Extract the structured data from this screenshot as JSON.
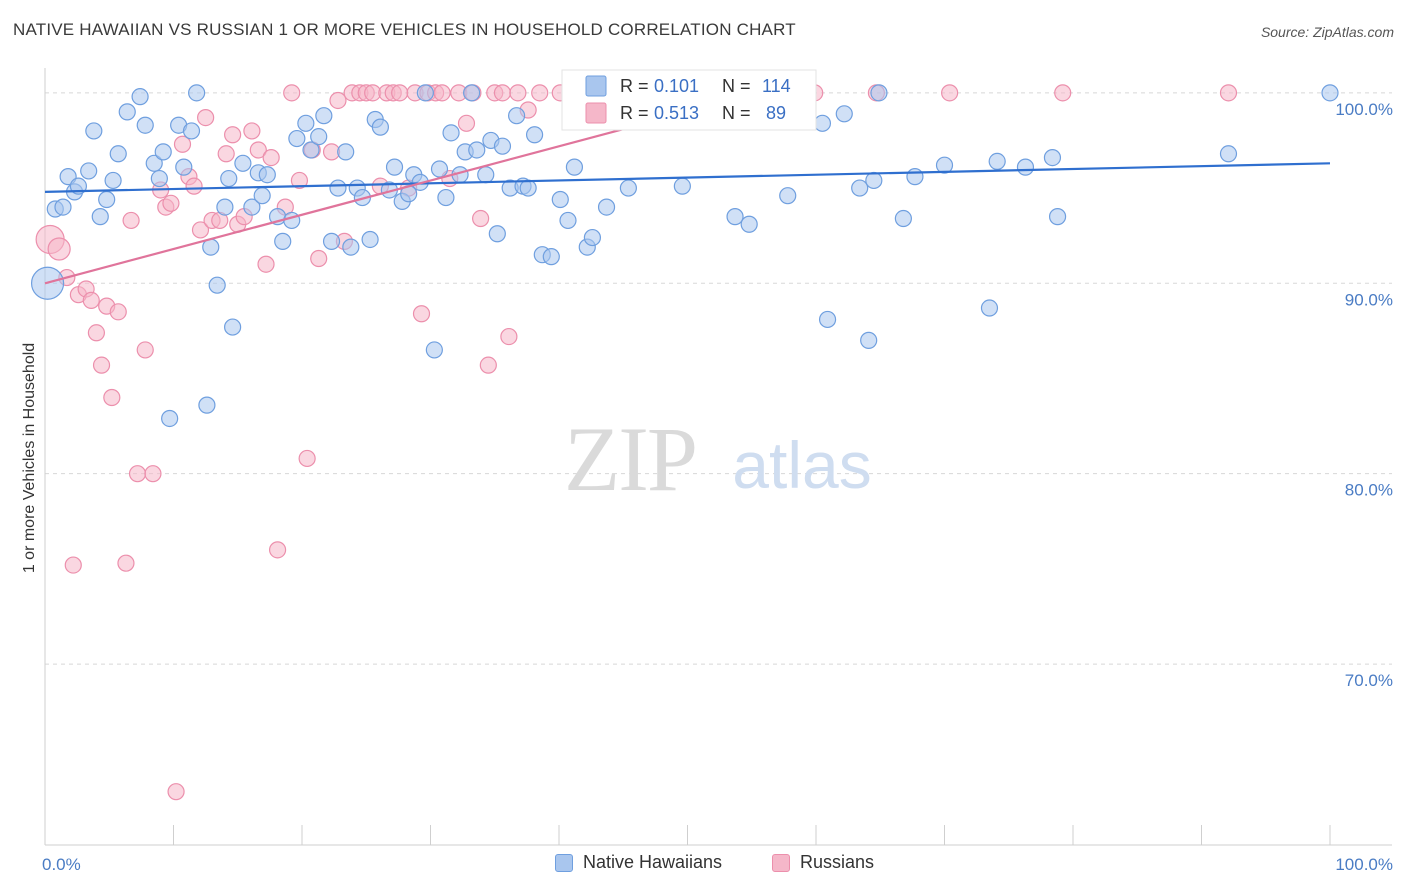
{
  "title": "NATIVE HAWAIIAN VS RUSSIAN 1 OR MORE VEHICLES IN HOUSEHOLD CORRELATION CHART",
  "source": "Source: ZipAtlas.com",
  "watermark": {
    "zip": "ZIP",
    "atlas": "atlas"
  },
  "colors": {
    "blue_fill": "#a9c6ee",
    "blue_stroke": "#6f9fdf",
    "blue_line": "#2f6fcf",
    "pink_fill": "#f5b7c9",
    "pink_stroke": "#ec8fac",
    "pink_line": "#e0749b",
    "grid": "#d8d8d8",
    "axis_text": "#4a7cc4"
  },
  "legend_stats": {
    "r_label": "R =",
    "n_label": "N =",
    "series": [
      {
        "name": "Native Hawaiians",
        "r": "0.101",
        "n": "114"
      },
      {
        "name": "Russians",
        "r": "0.513",
        "n": "89"
      }
    ]
  },
  "chart_data": {
    "type": "scatter",
    "title": "NATIVE HAWAIIAN VS RUSSIAN 1 OR MORE VEHICLES IN HOUSEHOLD CORRELATION CHART",
    "xlabel": "",
    "ylabel": "1 or more Vehicles in Household",
    "xlim": [
      0,
      100
    ],
    "ylim": [
      60.5,
      101.2
    ],
    "x_tick_labels": [
      "0.0%",
      "100.0%"
    ],
    "y_ticks": [
      70,
      80,
      90,
      100
    ],
    "y_tick_labels": [
      "70.0%",
      "80.0%",
      "90.0%",
      "100.0%"
    ],
    "series": [
      {
        "name": "Native Hawaiians",
        "color": "blue",
        "trend": {
          "x0": 0,
          "y0": 94.8,
          "x1": 100,
          "y1": 96.3
        },
        "points": [
          {
            "x": 0.2,
            "y": 90.0,
            "s": 16
          },
          {
            "x": 0.8,
            "y": 93.9
          },
          {
            "x": 1.4,
            "y": 94.0
          },
          {
            "x": 1.8,
            "y": 95.6
          },
          {
            "x": 2.3,
            "y": 94.8
          },
          {
            "x": 2.6,
            "y": 95.1
          },
          {
            "x": 3.4,
            "y": 95.9
          },
          {
            "x": 3.8,
            "y": 98.0
          },
          {
            "x": 4.3,
            "y": 93.5
          },
          {
            "x": 4.8,
            "y": 94.4
          },
          {
            "x": 5.3,
            "y": 95.4
          },
          {
            "x": 5.7,
            "y": 96.8
          },
          {
            "x": 6.4,
            "y": 99.0
          },
          {
            "x": 7.4,
            "y": 99.8
          },
          {
            "x": 7.8,
            "y": 98.3
          },
          {
            "x": 8.5,
            "y": 96.3
          },
          {
            "x": 8.9,
            "y": 95.5
          },
          {
            "x": 9.2,
            "y": 96.9
          },
          {
            "x": 9.7,
            "y": 82.9
          },
          {
            "x": 10.4,
            "y": 98.3
          },
          {
            "x": 10.8,
            "y": 96.1
          },
          {
            "x": 11.4,
            "y": 98.0
          },
          {
            "x": 11.8,
            "y": 100.0
          },
          {
            "x": 12.6,
            "y": 83.6
          },
          {
            "x": 12.9,
            "y": 91.9
          },
          {
            "x": 13.4,
            "y": 89.9
          },
          {
            "x": 14.0,
            "y": 94.0
          },
          {
            "x": 14.3,
            "y": 95.5
          },
          {
            "x": 14.6,
            "y": 87.7
          },
          {
            "x": 15.4,
            "y": 96.3
          },
          {
            "x": 16.1,
            "y": 94.0
          },
          {
            "x": 16.6,
            "y": 95.8
          },
          {
            "x": 16.9,
            "y": 94.6
          },
          {
            "x": 17.3,
            "y": 95.7
          },
          {
            "x": 18.1,
            "y": 93.5
          },
          {
            "x": 18.5,
            "y": 92.2
          },
          {
            "x": 19.2,
            "y": 93.3
          },
          {
            "x": 19.6,
            "y": 97.6
          },
          {
            "x": 20.3,
            "y": 98.4
          },
          {
            "x": 20.7,
            "y": 97.0
          },
          {
            "x": 21.3,
            "y": 97.7
          },
          {
            "x": 21.7,
            "y": 98.8
          },
          {
            "x": 22.3,
            "y": 92.2
          },
          {
            "x": 22.8,
            "y": 95.0
          },
          {
            "x": 23.4,
            "y": 96.9
          },
          {
            "x": 23.8,
            "y": 91.9
          },
          {
            "x": 24.3,
            "y": 95.0
          },
          {
            "x": 24.7,
            "y": 94.5
          },
          {
            "x": 25.3,
            "y": 92.3
          },
          {
            "x": 25.7,
            "y": 98.6
          },
          {
            "x": 26.1,
            "y": 98.2
          },
          {
            "x": 26.8,
            "y": 94.9
          },
          {
            "x": 27.2,
            "y": 96.1
          },
          {
            "x": 27.8,
            "y": 94.3
          },
          {
            "x": 28.3,
            "y": 94.7
          },
          {
            "x": 28.7,
            "y": 95.7
          },
          {
            "x": 29.2,
            "y": 95.3
          },
          {
            "x": 29.6,
            "y": 100.0
          },
          {
            "x": 30.3,
            "y": 86.5
          },
          {
            "x": 30.7,
            "y": 96.0
          },
          {
            "x": 31.2,
            "y": 94.5
          },
          {
            "x": 31.6,
            "y": 97.9
          },
          {
            "x": 32.3,
            "y": 95.7
          },
          {
            "x": 32.7,
            "y": 96.9
          },
          {
            "x": 33.2,
            "y": 100.0
          },
          {
            "x": 33.6,
            "y": 97.0
          },
          {
            "x": 34.3,
            "y": 95.7
          },
          {
            "x": 34.7,
            "y": 97.5
          },
          {
            "x": 35.2,
            "y": 92.6
          },
          {
            "x": 35.6,
            "y": 97.2
          },
          {
            "x": 36.2,
            "y": 95.0
          },
          {
            "x": 36.7,
            "y": 98.8
          },
          {
            "x": 37.2,
            "y": 95.1
          },
          {
            "x": 37.6,
            "y": 95.0
          },
          {
            "x": 38.1,
            "y": 97.8
          },
          {
            "x": 38.7,
            "y": 91.5
          },
          {
            "x": 39.4,
            "y": 91.4
          },
          {
            "x": 40.1,
            "y": 94.4
          },
          {
            "x": 40.7,
            "y": 93.3
          },
          {
            "x": 41.2,
            "y": 96.1
          },
          {
            "x": 42.2,
            "y": 91.9
          },
          {
            "x": 42.6,
            "y": 92.4
          },
          {
            "x": 43.7,
            "y": 94.0
          },
          {
            "x": 45.4,
            "y": 95.0
          },
          {
            "x": 49.6,
            "y": 95.1
          },
          {
            "x": 53.7,
            "y": 93.5
          },
          {
            "x": 54.8,
            "y": 93.1
          },
          {
            "x": 57.8,
            "y": 94.6
          },
          {
            "x": 60.5,
            "y": 98.4
          },
          {
            "x": 60.9,
            "y": 88.1
          },
          {
            "x": 62.2,
            "y": 98.9
          },
          {
            "x": 63.4,
            "y": 95.0
          },
          {
            "x": 64.1,
            "y": 87.0
          },
          {
            "x": 64.5,
            "y": 95.4
          },
          {
            "x": 64.9,
            "y": 100.0
          },
          {
            "x": 66.8,
            "y": 93.4
          },
          {
            "x": 67.7,
            "y": 95.6
          },
          {
            "x": 70.0,
            "y": 96.2
          },
          {
            "x": 73.5,
            "y": 88.7
          },
          {
            "x": 74.1,
            "y": 96.4
          },
          {
            "x": 76.3,
            "y": 96.1
          },
          {
            "x": 78.4,
            "y": 96.6
          },
          {
            "x": 78.8,
            "y": 93.5
          },
          {
            "x": 92.1,
            "y": 96.8
          },
          {
            "x": 100.0,
            "y": 100.0
          }
        ]
      },
      {
        "name": "Russians",
        "color": "pink",
        "trend": {
          "x0": 0,
          "y0": 90.0,
          "x1": 55.6,
          "y1": 100.0
        },
        "points": [
          {
            "x": 0.4,
            "y": 92.3,
            "s": 14
          },
          {
            "x": 1.1,
            "y": 91.8,
            "s": 11
          },
          {
            "x": 1.7,
            "y": 90.3
          },
          {
            "x": 2.2,
            "y": 75.2
          },
          {
            "x": 2.6,
            "y": 89.4
          },
          {
            "x": 3.2,
            "y": 89.7
          },
          {
            "x": 3.6,
            "y": 89.1
          },
          {
            "x": 4.0,
            "y": 87.4
          },
          {
            "x": 4.4,
            "y": 85.7
          },
          {
            "x": 4.8,
            "y": 88.8
          },
          {
            "x": 5.2,
            "y": 84.0
          },
          {
            "x": 5.7,
            "y": 88.5
          },
          {
            "x": 6.3,
            "y": 75.3
          },
          {
            "x": 6.7,
            "y": 93.3
          },
          {
            "x": 7.2,
            "y": 80.0
          },
          {
            "x": 7.8,
            "y": 86.5
          },
          {
            "x": 8.4,
            "y": 80.0
          },
          {
            "x": 9.0,
            "y": 94.9
          },
          {
            "x": 9.4,
            "y": 94.0
          },
          {
            "x": 9.8,
            "y": 94.2
          },
          {
            "x": 10.2,
            "y": 63.3
          },
          {
            "x": 10.7,
            "y": 97.3
          },
          {
            "x": 11.2,
            "y": 95.6
          },
          {
            "x": 11.6,
            "y": 95.1
          },
          {
            "x": 12.1,
            "y": 92.8
          },
          {
            "x": 12.5,
            "y": 98.7
          },
          {
            "x": 13.0,
            "y": 93.3
          },
          {
            "x": 13.6,
            "y": 93.3
          },
          {
            "x": 14.1,
            "y": 96.8
          },
          {
            "x": 14.6,
            "y": 97.8
          },
          {
            "x": 15.0,
            "y": 93.1
          },
          {
            "x": 15.5,
            "y": 93.5
          },
          {
            "x": 16.1,
            "y": 98.0
          },
          {
            "x": 16.6,
            "y": 97.0
          },
          {
            "x": 17.2,
            "y": 91.0
          },
          {
            "x": 17.6,
            "y": 96.6
          },
          {
            "x": 18.1,
            "y": 76.0
          },
          {
            "x": 18.7,
            "y": 94.0
          },
          {
            "x": 19.2,
            "y": 100.0
          },
          {
            "x": 19.8,
            "y": 95.4
          },
          {
            "x": 20.4,
            "y": 80.8
          },
          {
            "x": 20.8,
            "y": 97.0
          },
          {
            "x": 21.3,
            "y": 91.3
          },
          {
            "x": 22.3,
            "y": 96.9
          },
          {
            "x": 22.8,
            "y": 99.6
          },
          {
            "x": 23.3,
            "y": 92.2
          },
          {
            "x": 23.9,
            "y": 100.0
          },
          {
            "x": 24.5,
            "y": 100.0
          },
          {
            "x": 25.0,
            "y": 100.0
          },
          {
            "x": 25.5,
            "y": 100.0
          },
          {
            "x": 26.1,
            "y": 95.1
          },
          {
            "x": 26.6,
            "y": 100.0
          },
          {
            "x": 27.1,
            "y": 100.0
          },
          {
            "x": 27.6,
            "y": 100.0
          },
          {
            "x": 28.3,
            "y": 95.0
          },
          {
            "x": 28.8,
            "y": 100.0
          },
          {
            "x": 29.3,
            "y": 88.4
          },
          {
            "x": 29.8,
            "y": 100.0
          },
          {
            "x": 30.4,
            "y": 100.0
          },
          {
            "x": 30.9,
            "y": 100.0
          },
          {
            "x": 31.5,
            "y": 95.5
          },
          {
            "x": 32.2,
            "y": 100.0
          },
          {
            "x": 32.8,
            "y": 98.4
          },
          {
            "x": 33.3,
            "y": 100.0
          },
          {
            "x": 33.9,
            "y": 93.4
          },
          {
            "x": 34.5,
            "y": 85.7
          },
          {
            "x": 35.0,
            "y": 100.0
          },
          {
            "x": 35.6,
            "y": 100.0
          },
          {
            "x": 36.1,
            "y": 87.2
          },
          {
            "x": 36.8,
            "y": 100.0
          },
          {
            "x": 37.6,
            "y": 99.1
          },
          {
            "x": 38.5,
            "y": 100.0
          },
          {
            "x": 40.1,
            "y": 100.0
          },
          {
            "x": 41.3,
            "y": 100.0
          },
          {
            "x": 42.7,
            "y": 100.0
          },
          {
            "x": 44.4,
            "y": 100.0
          },
          {
            "x": 46.9,
            "y": 100.0
          },
          {
            "x": 49.6,
            "y": 100.0
          },
          {
            "x": 52.1,
            "y": 100.0
          },
          {
            "x": 55.4,
            "y": 100.0
          },
          {
            "x": 59.9,
            "y": 100.0
          },
          {
            "x": 64.7,
            "y": 100.0
          },
          {
            "x": 70.4,
            "y": 100.0
          },
          {
            "x": 79.2,
            "y": 100.0
          },
          {
            "x": 92.1,
            "y": 100.0
          }
        ]
      }
    ]
  }
}
